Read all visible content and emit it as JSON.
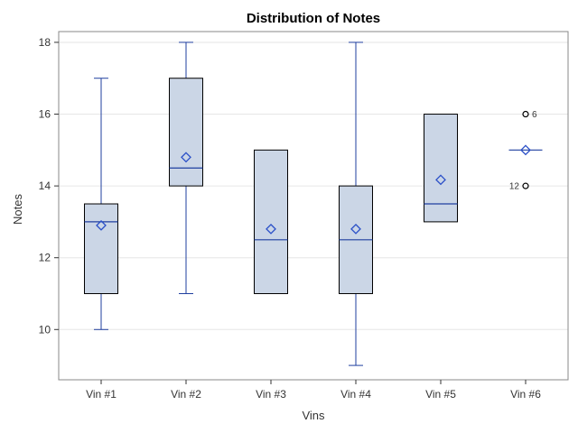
{
  "chart_data": {
    "type": "box",
    "title": "Distribution of Notes",
    "xlabel": "Vins",
    "ylabel": "Notes",
    "categories": [
      "Vin #1",
      "Vin #2",
      "Vin #3",
      "Vin #4",
      "Vin #5",
      "Vin #6"
    ],
    "ylim": [
      8.6,
      18.3
    ],
    "y_ticks": [
      10,
      12,
      14,
      16,
      18
    ],
    "grid": "horizontal",
    "legend": "none",
    "boxes": [
      {
        "category": "Vin #1",
        "min": 10,
        "q1": 11,
        "median": 13,
        "q3": 13.5,
        "max": 17,
        "mean": 12.9,
        "outliers": []
      },
      {
        "category": "Vin #2",
        "min": 11,
        "q1": 14,
        "median": 14.5,
        "q3": 17,
        "max": 18,
        "mean": 14.8,
        "outliers": []
      },
      {
        "category": "Vin #3",
        "min": 11,
        "q1": 11,
        "median": 12.5,
        "q3": 15,
        "max": 15,
        "mean": 12.8,
        "outliers": []
      },
      {
        "category": "Vin #4",
        "min": 9,
        "q1": 11,
        "median": 12.5,
        "q3": 14,
        "max": 18,
        "mean": 12.8,
        "outliers": []
      },
      {
        "category": "Vin #5",
        "min": 13,
        "q1": 13,
        "median": 13.5,
        "q3": 16,
        "max": 16,
        "mean": 14.17,
        "outliers": []
      },
      {
        "category": "Vin #6",
        "min": 15,
        "q1": 15,
        "median": 15,
        "q3": 15,
        "max": 15,
        "mean": 15,
        "outliers": [
          {
            "value": 16,
            "label": "6"
          },
          {
            "value": 14,
            "label": "12"
          }
        ]
      }
    ],
    "colors": {
      "box_fill": "#cbd6e6",
      "box_stroke": "#000000",
      "whisker": "#1f3f9f",
      "median": "#1f3f9f",
      "mean_marker": "#2b50c8",
      "outlier": "#000000",
      "grid": "#e6e6e6",
      "frame": "#888888"
    }
  }
}
